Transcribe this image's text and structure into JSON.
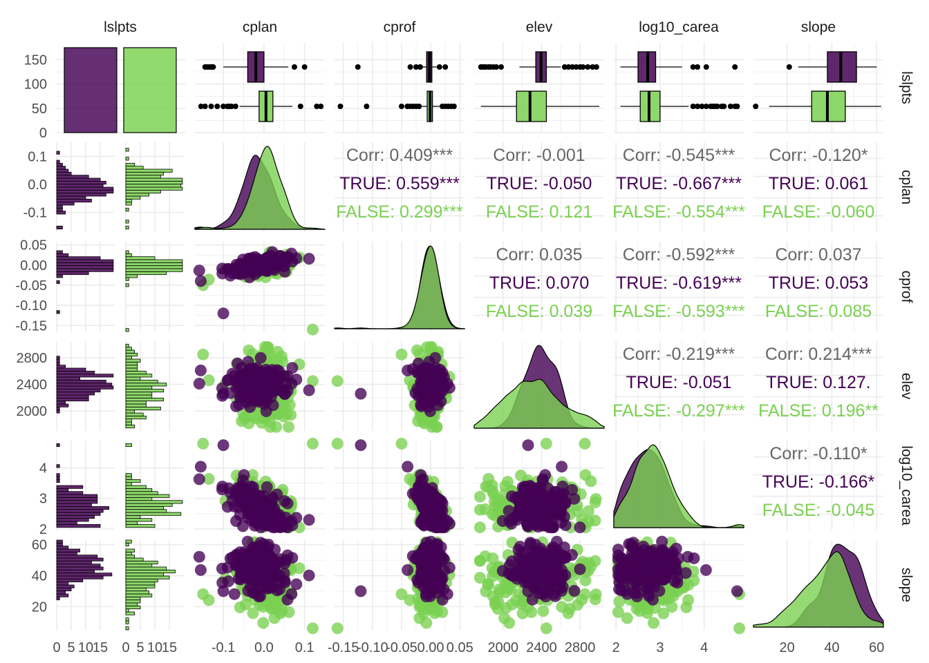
{
  "colors": {
    "true": "#440154",
    "false": "#7AD151",
    "overall": "#666666",
    "grid": "#ebebeb",
    "text": "#4d4d4d"
  },
  "chart_data": {
    "type": "pairs-matrix",
    "variables": [
      "lslpts",
      "cplan",
      "cprof",
      "elev",
      "log10_carea",
      "slope"
    ],
    "groups": [
      "TRUE",
      "FALSE"
    ],
    "ticks": {
      "lslpts_count": [
        "0",
        "50",
        "100",
        "150"
      ],
      "cplan": [
        "-0.1",
        "0.0",
        "0.1"
      ],
      "cprof": [
        "-0.15",
        "-0.10",
        "-0.05",
        "0.00",
        "0.05"
      ],
      "elev": [
        "2000",
        "2400",
        "2800"
      ],
      "log10_carea": [
        "2",
        "3",
        "4"
      ],
      "slope": [
        "20",
        "40",
        "60"
      ],
      "hist_count": [
        "0",
        "5",
        "10",
        "15"
      ]
    },
    "ranges": {
      "cplan": [
        -0.17,
        0.15
      ],
      "cprof": [
        -0.165,
        0.058
      ],
      "elev": [
        1700,
        3050
      ],
      "log10_carea": [
        1.95,
        4.9
      ],
      "slope": [
        5,
        63
      ],
      "lslpts_count": [
        0,
        185
      ],
      "hist_count": [
        0,
        20
      ]
    },
    "bar": {
      "categories": [
        "TRUE",
        "FALSE"
      ],
      "values": [
        175,
        175
      ]
    },
    "boxplots": {
      "cplan": {
        "TRUE": {
          "q1": -0.04,
          "median": -0.02,
          "q3": 0.0,
          "wlo": -0.1,
          "whi": 0.06,
          "outliers": [
            -0.145,
            -0.14,
            -0.135,
            -0.13,
            -0.128,
            -0.125,
            0.075,
            0.1
          ]
        },
        "FALSE": {
          "q1": -0.012,
          "median": 0.005,
          "q3": 0.022,
          "wlo": -0.06,
          "whi": 0.07,
          "outliers": [
            -0.155,
            -0.145,
            -0.13,
            -0.115,
            -0.1,
            -0.09,
            -0.085,
            -0.08,
            -0.07,
            0.09,
            0.13,
            0.14
          ]
        }
      },
      "cprof": {
        "TRUE": {
          "q1": -0.007,
          "median": -0.002,
          "q3": 0.002,
          "wlo": -0.015,
          "whi": 0.01,
          "outliers": [
            -0.125,
            -0.035,
            -0.025,
            -0.018,
            0.015,
            0.025
          ]
        },
        "FALSE": {
          "q1": -0.006,
          "median": -0.001,
          "q3": 0.003,
          "wlo": -0.015,
          "whi": 0.015,
          "outliers": [
            -0.155,
            -0.11,
            -0.05,
            -0.04,
            -0.035,
            -0.03,
            -0.025,
            -0.02,
            0.02,
            0.025,
            0.03,
            0.035,
            0.04
          ]
        }
      },
      "elev": {
        "TRUE": {
          "q1": 2340,
          "median": 2395,
          "q3": 2450,
          "wlo": 2170,
          "whi": 2600,
          "outliers": [
            1770,
            1780,
            1800,
            1820,
            1850,
            1870,
            1900,
            1930,
            1980,
            2640,
            2680,
            2720,
            2760,
            2800,
            2830,
            2880,
            2930,
            2970
          ]
        },
        "FALSE": {
          "q1": 2140,
          "median": 2280,
          "q3": 2450,
          "wlo": 1770,
          "whi": 3000,
          "outliers": []
        }
      },
      "log10_carea": {
        "TRUE": {
          "q1": 2.5,
          "median": 2.72,
          "q3": 2.9,
          "wlo": 2.1,
          "whi": 3.5,
          "outliers": [
            3.75,
            3.85,
            4.05,
            4.7
          ]
        },
        "FALSE": {
          "q1": 2.55,
          "median": 2.75,
          "q3": 3.0,
          "wlo": 2.1,
          "whi": 3.65,
          "outliers": [
            3.75,
            3.85,
            3.95,
            4.05,
            4.15,
            4.2,
            4.25,
            4.3,
            4.4,
            4.45,
            4.6,
            4.7,
            4.75
          ]
        }
      },
      "slope": {
        "TRUE": {
          "q1": 38,
          "median": 44,
          "q3": 51,
          "wlo": 25,
          "whi": 60,
          "outliers": [
            21
          ]
        },
        "FALSE": {
          "q1": 31,
          "median": 38,
          "q3": 46,
          "wlo": 12,
          "whi": 62,
          "outliers": [
            6
          ]
        }
      }
    },
    "correlations": [
      {
        "row": "cplan",
        "col": "cprof",
        "overall": "Corr: 0.409***",
        "true": "TRUE: 0.559***",
        "false": "FALSE: 0.299***"
      },
      {
        "row": "cplan",
        "col": "elev",
        "overall": "Corr: -0.001",
        "true": "TRUE: -0.050",
        "false": "FALSE: 0.121"
      },
      {
        "row": "cplan",
        "col": "log10_carea",
        "overall": "Corr: -0.545***",
        "true": "TRUE: -0.667***",
        "false": "FALSE: -0.554***"
      },
      {
        "row": "cplan",
        "col": "slope",
        "overall": "Corr: -0.120*",
        "true": "TRUE: 0.061",
        "false": "FALSE: -0.060"
      },
      {
        "row": "cprof",
        "col": "elev",
        "overall": "Corr: 0.035",
        "true": "TRUE: 0.070",
        "false": "FALSE: 0.039"
      },
      {
        "row": "cprof",
        "col": "log10_carea",
        "overall": "Corr: -0.592***",
        "true": "TRUE: -0.619***",
        "false": "FALSE: -0.593***"
      },
      {
        "row": "cprof",
        "col": "slope",
        "overall": "Corr: 0.037",
        "true": "TRUE: 0.053",
        "false": "FALSE: 0.085"
      },
      {
        "row": "elev",
        "col": "log10_carea",
        "overall": "Corr: -0.219***",
        "true": "TRUE: -0.051",
        "false": "FALSE: -0.297***"
      },
      {
        "row": "elev",
        "col": "slope",
        "overall": "Corr: 0.214***",
        "true": "TRUE: 0.127.",
        "false": "FALSE: 0.196**"
      },
      {
        "row": "log10_carea",
        "col": "slope",
        "overall": "Corr: -0.110*",
        "true": "TRUE: -0.166*",
        "false": "FALSE: -0.045"
      }
    ]
  }
}
